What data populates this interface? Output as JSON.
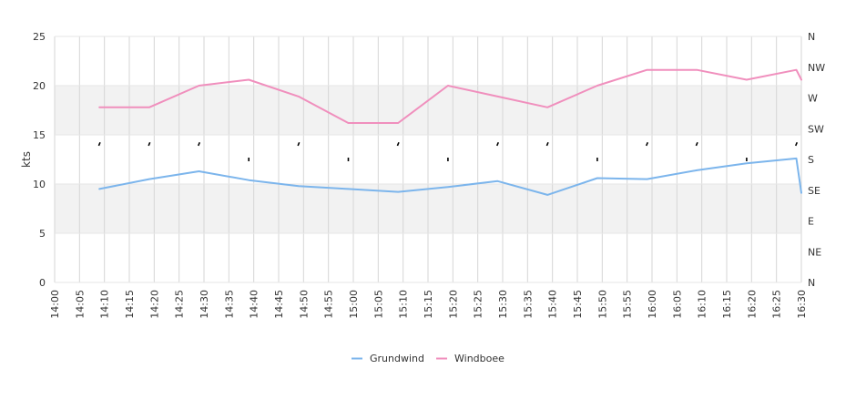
{
  "chart_data": {
    "type": "line",
    "ylabel": "kts",
    "ylim": [
      0,
      25
    ],
    "yticks": [
      "0",
      "5",
      "10",
      "15",
      "20",
      "25"
    ],
    "direction_ticks": [
      "N",
      "NE",
      "E",
      "SE",
      "S",
      "SW",
      "W",
      "NW",
      "N"
    ],
    "xticks": [
      "14:00",
      "14:05",
      "14:10",
      "14:15",
      "14:20",
      "14:25",
      "14:30",
      "14:35",
      "14:40",
      "14:45",
      "14:50",
      "14:55",
      "15:00",
      "15:05",
      "15:10",
      "15:15",
      "15:20",
      "15:25",
      "15:30",
      "15:35",
      "15:40",
      "15:45",
      "15:50",
      "15:55",
      "16:00",
      "16:05",
      "16:10",
      "16:15",
      "16:20",
      "16:25",
      "16:30"
    ],
    "grid": true,
    "legend_position": "bottom-center",
    "series": [
      {
        "name": "Grundwind",
        "color": "#7cb5ec",
        "x": [
          "14:09",
          "14:19",
          "14:29",
          "14:39",
          "14:49",
          "14:59",
          "15:09",
          "15:19",
          "15:29",
          "15:39",
          "15:49",
          "15:59",
          "16:09",
          "16:19",
          "16:29",
          "16:30"
        ],
        "values": [
          9.5,
          10.5,
          11.3,
          10.4,
          9.8,
          9.5,
          9.2,
          9.7,
          10.3,
          8.9,
          10.6,
          10.5,
          11.4,
          12.1,
          12.6,
          9.1
        ]
      },
      {
        "name": "Windboee",
        "color": "#f08fbd",
        "x": [
          "14:09",
          "14:19",
          "14:29",
          "14:39",
          "14:49",
          "14:59",
          "15:09",
          "15:19",
          "15:29",
          "15:39",
          "15:49",
          "15:59",
          "16:09",
          "16:19",
          "16:29",
          "16:30"
        ],
        "values": [
          17.8,
          17.8,
          20.0,
          20.6,
          18.9,
          16.2,
          16.2,
          20.0,
          18.9,
          17.8,
          20.0,
          21.6,
          21.6,
          20.6,
          21.6,
          20.6
        ]
      }
    ],
    "direction_points": {
      "color": "#000000",
      "x": [
        "14:09",
        "14:19",
        "14:29",
        "14:39",
        "14:49",
        "14:59",
        "15:09",
        "15:19",
        "15:29",
        "15:39",
        "15:49",
        "15:59",
        "16:09",
        "16:19",
        "16:29"
      ],
      "values": [
        "SSW",
        "SSW",
        "SSW",
        "S",
        "SSW",
        "S",
        "SSW",
        "S",
        "SSW",
        "SSW",
        "S",
        "SSW",
        "SSW",
        "S",
        "SSW"
      ]
    }
  }
}
